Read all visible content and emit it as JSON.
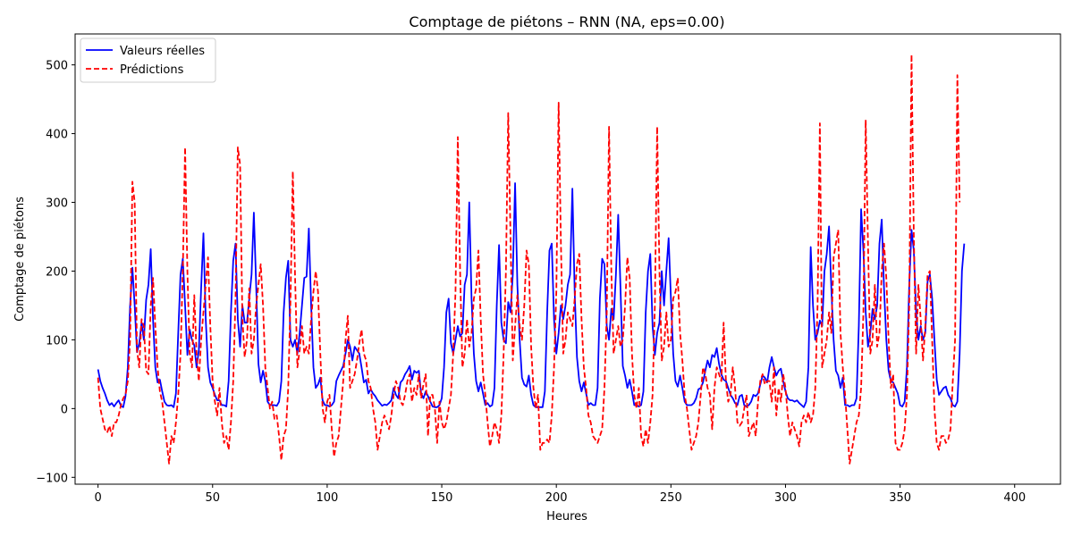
{
  "chart_data": {
    "type": "line",
    "title": "Comptage de piétons – RNN (NA, eps=0.00)",
    "xlabel": "Heures",
    "ylabel": "Comptage de piétons",
    "xlim": [
      -10,
      420
    ],
    "ylim": [
      -110,
      545
    ],
    "xticks": [
      0,
      50,
      100,
      150,
      200,
      250,
      300,
      350,
      400
    ],
    "yticks": [
      -100,
      0,
      100,
      200,
      300,
      400,
      500
    ],
    "legend_position": "upper-left",
    "colors": {
      "actual": "#0000ff",
      "predicted": "#ff0000"
    },
    "series": [
      {
        "name": "Valeurs réelles",
        "style": "solid",
        "values": [
          57,
          40,
          30,
          22,
          12,
          5,
          8,
          3,
          8,
          12,
          4,
          2,
          18,
          60,
          150,
          205,
          150,
          82,
          95,
          125,
          100,
          158,
          180,
          232,
          130,
          60,
          38,
          42,
          25,
          10,
          5,
          4,
          5,
          2,
          22,
          110,
          195,
          218,
          150,
          78,
          115,
          100,
          92,
          60,
          85,
          175,
          255,
          130,
          60,
          38,
          30,
          20,
          12,
          12,
          5,
          5,
          3,
          40,
          140,
          215,
          240,
          130,
          90,
          150,
          125,
          125,
          160,
          195,
          285,
          180,
          65,
          38,
          55,
          40,
          10,
          5,
          5,
          5,
          4,
          10,
          40,
          140,
          190,
          215,
          100,
          90,
          100,
          80,
          110,
          150,
          190,
          192,
          262,
          150,
          60,
          30,
          35,
          45,
          12,
          5,
          5,
          3,
          5,
          10,
          40,
          48,
          55,
          62,
          80,
          100,
          90,
          70,
          90,
          85,
          80,
          60,
          38,
          42,
          22,
          28,
          22,
          18,
          12,
          8,
          4,
          6,
          5,
          8,
          12,
          30,
          20,
          15,
          38,
          42,
          50,
          55,
          62,
          42,
          55,
          52,
          55,
          22,
          15,
          25,
          18,
          10,
          3,
          2,
          2,
          5,
          15,
          60,
          140,
          160,
          95,
          80,
          100,
          120,
          105,
          110,
          180,
          195,
          300,
          160,
          80,
          40,
          25,
          38,
          22,
          5,
          8,
          3,
          5,
          30,
          150,
          238,
          125,
          100,
          95,
          155,
          140,
          195,
          328,
          180,
          100,
          45,
          35,
          32,
          48,
          20,
          5,
          2,
          2,
          2,
          2,
          25,
          140,
          230,
          240,
          130,
          80,
          110,
          150,
          130,
          150,
          180,
          195,
          320,
          170,
          75,
          40,
          25,
          38,
          22,
          5,
          8,
          5,
          5,
          30,
          160,
          218,
          210,
          120,
          100,
          145,
          130,
          195,
          282,
          175,
          62,
          48,
          30,
          42,
          25,
          5,
          5,
          3,
          5,
          25,
          140,
          200,
          225,
          120,
          78,
          110,
          125,
          200,
          150,
          200,
          248,
          160,
          80,
          40,
          32,
          48,
          30,
          10,
          5,
          5,
          5,
          8,
          15,
          28,
          30,
          38,
          55,
          70,
          60,
          78,
          75,
          88,
          65,
          50,
          42,
          40,
          30,
          20,
          15,
          8,
          5,
          18,
          20,
          5,
          3,
          5,
          10,
          20,
          18,
          22,
          35,
          48,
          45,
          38,
          60,
          75,
          60,
          48,
          55,
          58,
          40,
          25,
          15,
          12,
          12,
          10,
          12,
          8,
          5,
          2,
          10,
          60,
          235,
          150,
          100,
          110,
          128,
          120,
          200,
          225,
          265,
          175,
          100,
          55,
          48,
          30,
          45,
          5,
          5,
          3,
          5,
          5,
          15,
          120,
          290,
          230,
          140,
          90,
          110,
          145,
          130,
          150,
          240,
          275,
          175,
          100,
          55,
          40,
          38,
          30,
          22,
          5,
          3,
          10,
          60,
          180,
          260,
          230,
          140,
          100,
          120,
          100,
          110,
          185,
          195,
          160,
          100,
          42,
          20,
          25,
          30,
          32,
          20,
          15,
          5,
          3,
          10,
          80,
          200,
          240
        ]
      },
      {
        "name": "Prédictions",
        "style": "dashed",
        "values": [
          45,
          0,
          -15,
          -30,
          -35,
          -25,
          -40,
          -20,
          -20,
          -10,
          5,
          15,
          20,
          40,
          100,
          330,
          300,
          85,
          60,
          130,
          120,
          55,
          50,
          150,
          190,
          120,
          60,
          25,
          10,
          -20,
          -50,
          -80,
          -40,
          -50,
          -20,
          20,
          80,
          200,
          380,
          200,
          80,
          60,
          165,
          80,
          40,
          100,
          140,
          180,
          220,
          120,
          40,
          10,
          -10,
          30,
          -20,
          -50,
          -40,
          -60,
          -20,
          40,
          160,
          380,
          355,
          130,
          75,
          100,
          175,
          80,
          100,
          150,
          180,
          210,
          150,
          60,
          30,
          0,
          10,
          -15,
          -10,
          -40,
          -75,
          -40,
          -30,
          30,
          160,
          345,
          190,
          60,
          85,
          120,
          80,
          90,
          80,
          130,
          170,
          200,
          170,
          80,
          0,
          -20,
          10,
          20,
          -30,
          -70,
          -50,
          -40,
          0,
          40,
          100,
          135,
          30,
          40,
          50,
          70,
          95,
          115,
          80,
          70,
          40,
          30,
          0,
          -20,
          -60,
          -40,
          -20,
          -10,
          -20,
          -30,
          -10,
          20,
          40,
          30,
          10,
          5,
          20,
          40,
          50,
          10,
          30,
          20,
          50,
          15,
          35,
          50,
          -40,
          20,
          20,
          0,
          -50,
          10,
          -20,
          -30,
          -20,
          0,
          20,
          80,
          170,
          395,
          200,
          60,
          80,
          130,
          90,
          110,
          160,
          175,
          230,
          130,
          50,
          20,
          -20,
          -55,
          -40,
          -20,
          -30,
          -50,
          -10,
          80,
          200,
          430,
          250,
          70,
          120,
          165,
          120,
          100,
          150,
          230,
          210,
          90,
          30,
          0,
          20,
          -60,
          -50,
          -50,
          -45,
          -50,
          -10,
          60,
          170,
          445,
          240,
          80,
          100,
          140,
          130,
          120,
          160,
          210,
          225,
          130,
          60,
          30,
          -10,
          -20,
          -40,
          -45,
          -50,
          -40,
          -30,
          30,
          140,
          410,
          200,
          80,
          100,
          120,
          90,
          100,
          150,
          220,
          190,
          80,
          20,
          0,
          30,
          -40,
          -55,
          -30,
          -50,
          -20,
          20,
          150,
          410,
          200,
          70,
          90,
          140,
          90,
          100,
          160,
          170,
          190,
          110,
          70,
          20,
          0,
          -30,
          -60,
          -50,
          -40,
          -20,
          20,
          60,
          50,
          30,
          20,
          -30,
          30,
          60,
          50,
          40,
          125,
          40,
          10,
          20,
          60,
          30,
          -20,
          -25,
          -20,
          0,
          20,
          -40,
          -30,
          -20,
          -40,
          10,
          40,
          50,
          35,
          40,
          40,
          10,
          60,
          -10,
          30,
          10,
          50,
          30,
          -10,
          -40,
          -20,
          -30,
          -40,
          -55,
          -20,
          -10,
          -20,
          -5,
          -20,
          -10,
          30,
          150,
          415,
          60,
          80,
          100,
          140,
          110,
          220,
          240,
          260,
          110,
          60,
          20,
          -30,
          -80,
          -60,
          -40,
          -20,
          -10,
          30,
          140,
          420,
          240,
          80,
          100,
          180,
          90,
          110,
          200,
          240,
          190,
          100,
          30,
          50,
          -50,
          -60,
          -60,
          -50,
          -30,
          20,
          150,
          515,
          250,
          80,
          180,
          130,
          70,
          120,
          195,
          200,
          100,
          0,
          -50,
          -60,
          -40,
          -40,
          -50,
          -45,
          -30,
          40,
          100,
          485,
          300
        ]
      }
    ]
  }
}
